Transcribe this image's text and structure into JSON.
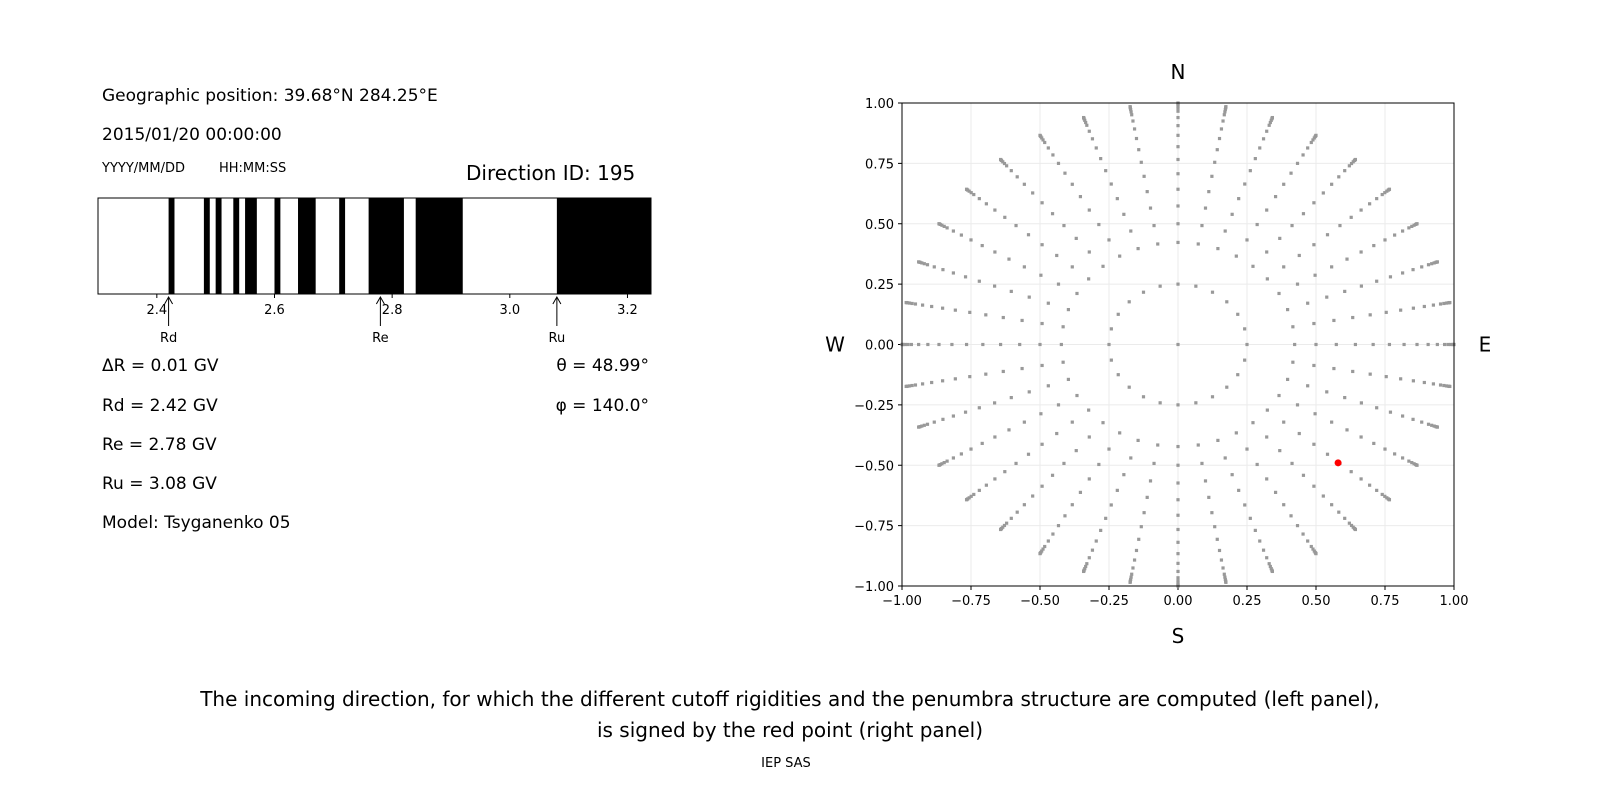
{
  "left_panel": {
    "position": "Geographic position: 39.68°N 284.25°E",
    "datetime": "2015/01/20 00:00:00",
    "date_format": "YYYY/MM/DD",
    "time_format": "HH:MM:SS",
    "direction_id": "Direction ID: 195",
    "delta_r": "ΔR = 0.01 GV",
    "rd": "Rd = 2.42 GV",
    "re": "Re = 2.78 GV",
    "ru": "Ru = 3.08 GV",
    "model": "Model: Tsyganenko 05",
    "theta": "θ = 48.99°",
    "phi": "φ = 140.0°"
  },
  "chart_data": [
    {
      "type": "bar",
      "subtype": "penumbra-strip",
      "xlim": [
        2.3,
        3.24
      ],
      "xticks": [
        "2.4",
        "2.6",
        "2.8",
        "3.0",
        "3.2"
      ],
      "forbidden_bands_gv": [
        [
          2.42,
          2.43
        ],
        [
          2.48,
          2.49
        ],
        [
          2.5,
          2.51
        ],
        [
          2.53,
          2.54
        ],
        [
          2.55,
          2.57
        ],
        [
          2.6,
          2.61
        ],
        [
          2.64,
          2.67
        ],
        [
          2.71,
          2.72
        ],
        [
          2.76,
          2.82
        ],
        [
          2.84,
          2.92
        ],
        [
          3.08,
          3.24
        ]
      ],
      "markers": [
        {
          "label": "Rd",
          "value": 2.42
        },
        {
          "label": "Re",
          "value": 2.78
        },
        {
          "label": "Ru",
          "value": 3.08
        }
      ],
      "colors": {
        "forbidden": "#000000",
        "allowed": "#ffffff"
      }
    },
    {
      "type": "scatter",
      "xlim": [
        -1,
        1
      ],
      "ylim": [
        -1,
        1
      ],
      "grid": true,
      "xticks": [
        "−1.00",
        "−0.75",
        "−0.50",
        "−0.25",
        "0.00",
        "0.25",
        "0.50",
        "0.75",
        "1.00"
      ],
      "yticks": [
        "−1.00",
        "−0.75",
        "−0.50",
        "−0.25",
        "0.00",
        "0.25",
        "0.50",
        "0.75",
        "1.00"
      ],
      "compass": {
        "n": "N",
        "s": "S",
        "e": "E",
        "w": "W"
      },
      "grid_points": {
        "azimuth_step_deg": 10,
        "zenith_deg": [
          25,
          30,
          35,
          40,
          45,
          50,
          55,
          60,
          65,
          70,
          75,
          78,
          81,
          84,
          87,
          90
        ],
        "inner_ring_radius": 0.25,
        "inner_ring_count": 24,
        "center": [
          0,
          0
        ]
      },
      "selected_point": {
        "x": 0.58,
        "y": -0.49
      },
      "colors": {
        "points": "#999999",
        "selected": "#ff0000"
      }
    }
  ],
  "caption": {
    "line1": "The incoming direction, for which the different cutoff rigidities and the penumbra structure are computed (left panel),",
    "line2": "is signed by the red point (right panel)",
    "credit": "IEP SAS"
  }
}
